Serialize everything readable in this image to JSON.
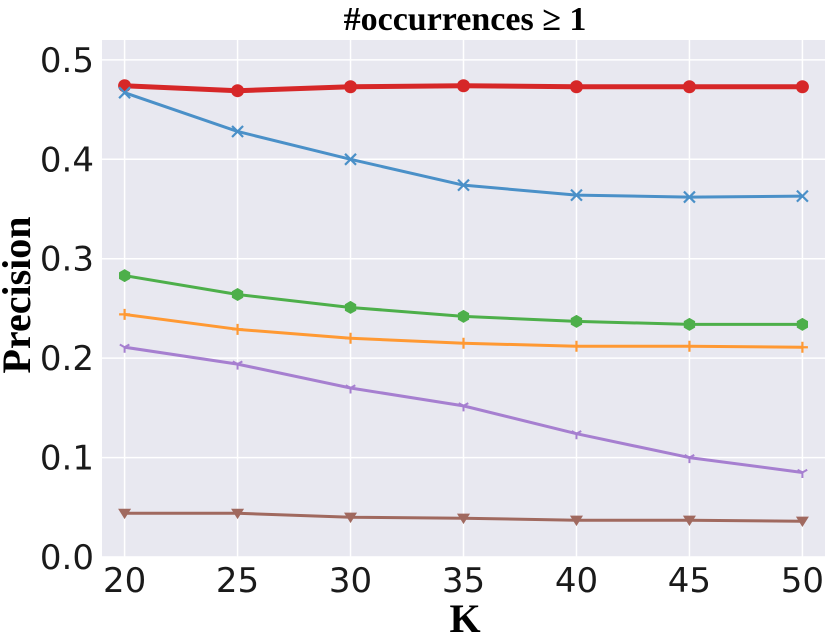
{
  "chart_data": {
    "type": "line",
    "title": "#occurrences ≥ 1",
    "xlabel": "K",
    "ylabel": "Precision",
    "x": [
      20,
      25,
      30,
      35,
      40,
      45,
      50
    ],
    "xlim": [
      19,
      51
    ],
    "ylim": [
      0.0,
      0.52
    ],
    "xticks": [
      "20",
      "25",
      "30",
      "35",
      "40",
      "45",
      "50"
    ],
    "yticks": [
      "0.0",
      "0.1",
      "0.2",
      "0.3",
      "0.4",
      "0.5"
    ],
    "grid": true,
    "background": "#e8e8f0",
    "series": [
      {
        "color": "#d62728",
        "marker": "circle",
        "values": [
          0.474,
          0.469,
          0.473,
          0.474,
          0.473,
          0.473,
          0.473
        ]
      },
      {
        "color": "#4a90c8",
        "marker": "x",
        "values": [
          0.467,
          0.428,
          0.4,
          0.374,
          0.364,
          0.362,
          0.363
        ]
      },
      {
        "color": "#4daf4a",
        "marker": "hexagon",
        "values": [
          0.283,
          0.264,
          0.251,
          0.242,
          0.237,
          0.234,
          0.234
        ]
      },
      {
        "color": "#ff9933",
        "marker": "plus",
        "values": [
          0.244,
          0.229,
          0.22,
          0.215,
          0.212,
          0.212,
          0.211
        ]
      },
      {
        "color": "#a67fd0",
        "marker": "tri",
        "values": [
          0.211,
          0.194,
          0.17,
          0.152,
          0.124,
          0.1,
          0.085
        ]
      },
      {
        "color": "#a0695f",
        "marker": "triangle-down",
        "values": [
          0.044,
          0.044,
          0.04,
          0.039,
          0.037,
          0.037,
          0.036
        ]
      }
    ]
  }
}
